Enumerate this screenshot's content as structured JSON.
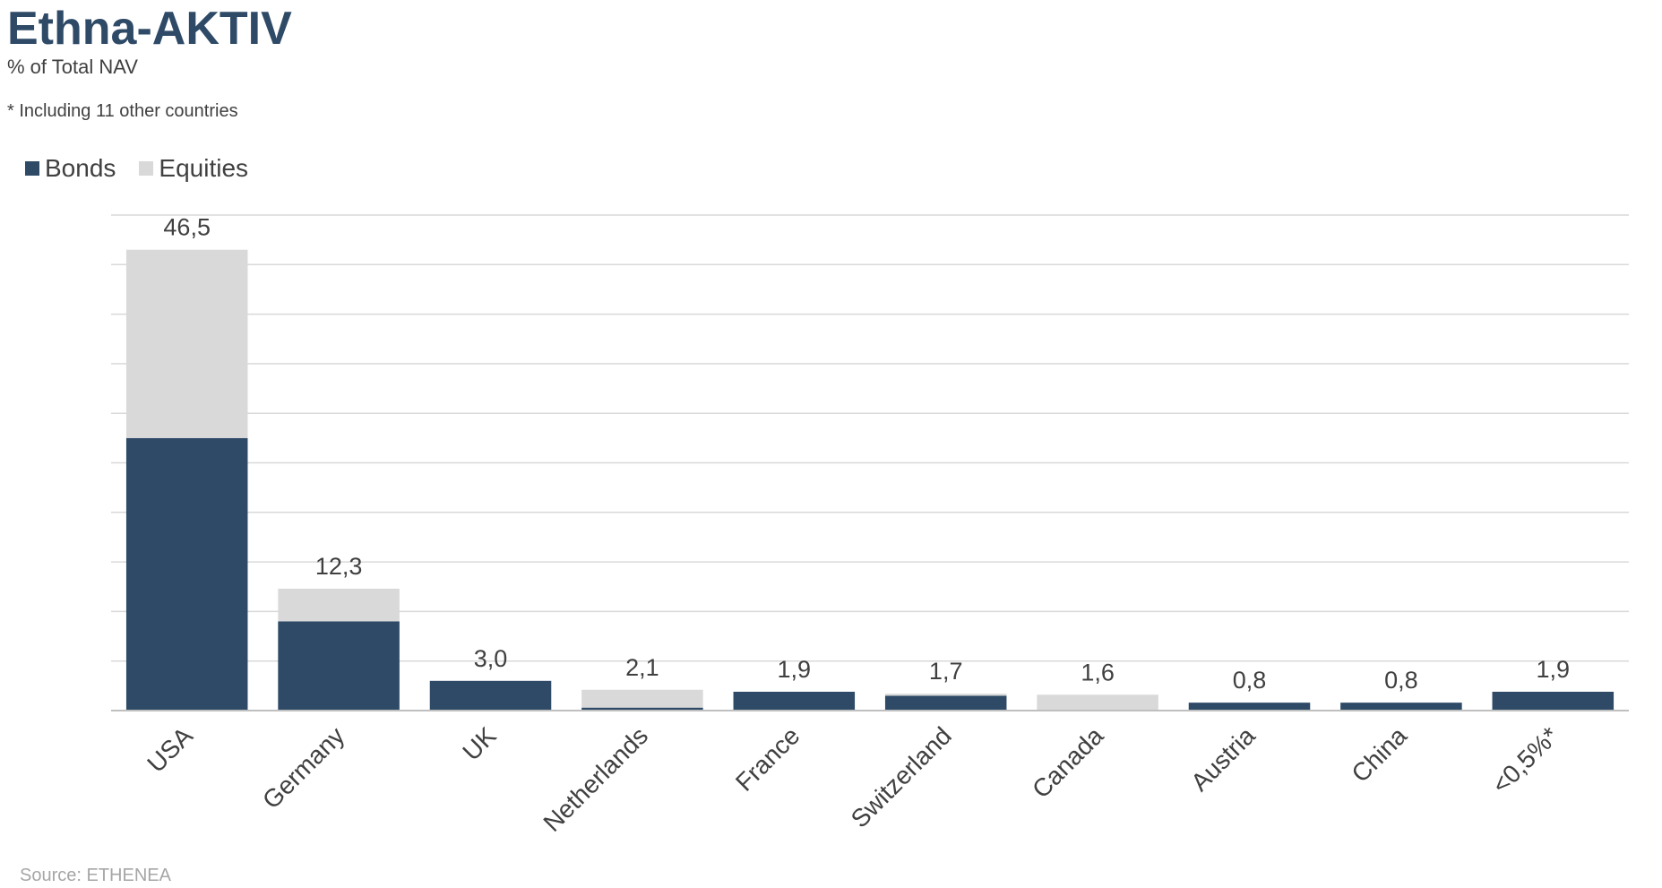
{
  "title": "Ethna-AKTIV",
  "subtitle": "% of Total NAV",
  "footnote": "* Including 11 other countries",
  "source": "Source: ETHENEA",
  "colors": {
    "bonds": "#2e4a67",
    "equities": "#d9d9d9",
    "grid": "#d9d9d9",
    "axis": "#bfbfbf",
    "text": "#404040"
  },
  "chart_data": {
    "type": "bar",
    "stacked": true,
    "categories": [
      "USA",
      "Germany",
      "UK",
      "Netherlands",
      "France",
      "Switzerland",
      "Canada",
      "Austria",
      "China",
      "<0,5%*"
    ],
    "series": [
      {
        "name": "Bonds",
        "values": [
          27.5,
          9.0,
          3.0,
          0.3,
          1.9,
          1.5,
          0.0,
          0.8,
          0.8,
          1.9
        ]
      },
      {
        "name": "Equities",
        "values": [
          19.0,
          3.3,
          0.0,
          1.8,
          0.0,
          0.2,
          1.6,
          0.0,
          0.0,
          0.0
        ]
      }
    ],
    "data_labels": [
      "46,5",
      "12,3",
      "3,0",
      "2,1",
      "1,9",
      "1,7",
      "1,6",
      "0,8",
      "0,8",
      "1,9"
    ],
    "ylim": [
      0,
      50
    ],
    "grid": true,
    "legend_position": "top-left"
  }
}
